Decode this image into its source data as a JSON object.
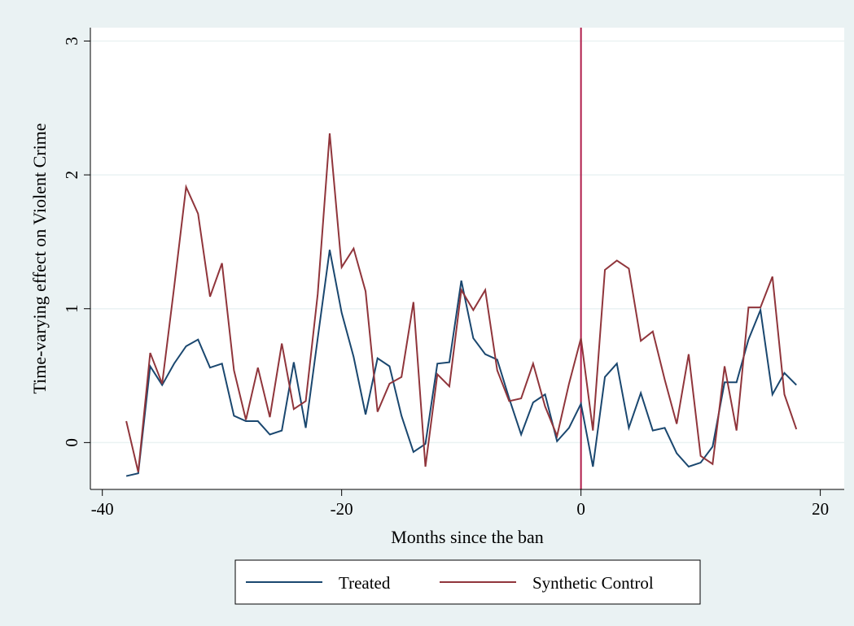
{
  "chart_data": {
    "type": "line",
    "xlabel": "Months since the ban",
    "ylabel": "Time-varying effect on Violent Crime",
    "xlim": [
      -41,
      22
    ],
    "ylim": [
      -0.35,
      3.1
    ],
    "xticks": [
      -40,
      -20,
      0,
      20
    ],
    "yticks": [
      0,
      1,
      2,
      3
    ],
    "grid": true,
    "legend_placement": "bottom",
    "event_line": {
      "x": 0,
      "color": "#b01c4a"
    },
    "x": [
      -38,
      -37,
      -36,
      -35,
      -34,
      -33,
      -32,
      -31,
      -30,
      -29,
      -28,
      -27,
      -26,
      -25,
      -24,
      -23,
      -22,
      -21,
      -20,
      -19,
      -18,
      -17,
      -16,
      -15,
      -14,
      -13,
      -12,
      -11,
      -10,
      -9,
      -8,
      -7,
      -6,
      -5,
      -4,
      -3,
      -2,
      -1,
      0,
      1,
      2,
      3,
      4,
      5,
      6,
      7,
      8,
      9,
      10,
      11,
      12,
      13,
      14,
      15,
      16,
      17,
      18
    ],
    "series": [
      {
        "name": "Treated",
        "color": "#1a476f",
        "values": [
          -0.25,
          -0.23,
          0.57,
          0.43,
          0.59,
          0.72,
          0.77,
          0.56,
          0.59,
          0.2,
          0.16,
          0.16,
          0.06,
          0.09,
          0.6,
          0.11,
          0.78,
          1.44,
          0.97,
          0.64,
          0.21,
          0.63,
          0.57,
          0.2,
          -0.07,
          -0.01,
          0.59,
          0.6,
          1.21,
          0.78,
          0.66,
          0.62,
          0.33,
          0.06,
          0.3,
          0.36,
          0.01,
          0.11,
          0.29,
          -0.18,
          0.49,
          0.59,
          0.11,
          0.37,
          0.09,
          0.11,
          -0.08,
          -0.18,
          -0.15,
          -0.03,
          0.45,
          0.45,
          0.77,
          0.99,
          0.36,
          0.52,
          0.43
        ]
      },
      {
        "name": "Synthetic Control",
        "color": "#90353b",
        "values": [
          0.16,
          -0.22,
          0.67,
          0.44,
          1.16,
          1.91,
          1.71,
          1.09,
          1.34,
          0.54,
          0.17,
          0.56,
          0.19,
          0.74,
          0.25,
          0.31,
          1.11,
          2.31,
          1.31,
          1.45,
          1.13,
          0.23,
          0.44,
          0.49,
          1.05,
          -0.18,
          0.51,
          0.42,
          1.14,
          0.99,
          1.14,
          0.54,
          0.31,
          0.33,
          0.59,
          0.27,
          0.05,
          0.44,
          0.78,
          0.09,
          1.29,
          1.36,
          1.3,
          0.76,
          0.83,
          0.47,
          0.14,
          0.66,
          -0.1,
          -0.16,
          0.57,
          0.09,
          1.01,
          1.01,
          1.24,
          0.36,
          0.1
        ]
      }
    ]
  }
}
